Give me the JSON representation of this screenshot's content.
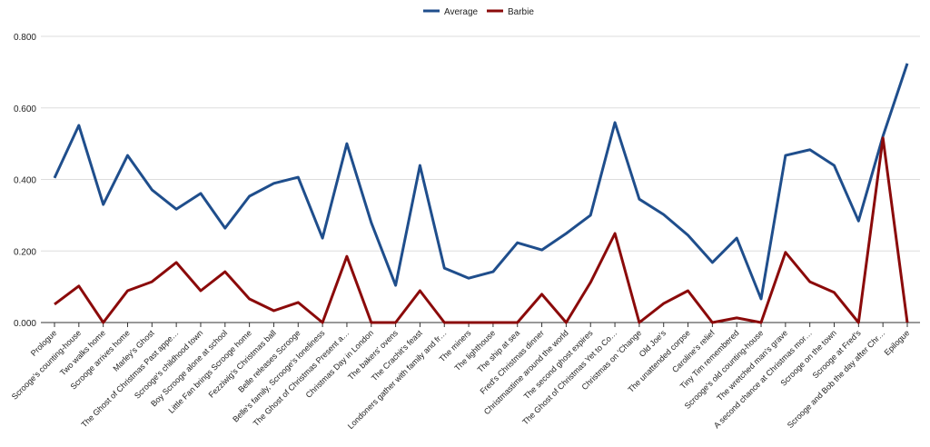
{
  "chart_data": {
    "type": "line",
    "title": "",
    "xlabel": "",
    "ylabel": "",
    "ylim": [
      0,
      0.8
    ],
    "yticks": [
      "0.000",
      "0.200",
      "0.400",
      "0.600",
      "0.800"
    ],
    "grid": true,
    "legend_position": "top-center",
    "categories": [
      "Prologue",
      "Scrooge's counting-house",
      "Two walks home",
      "Scrooge arrives home",
      "Marley's Ghost",
      "The Ghost of Christmas Past appe…",
      "Scrooge's childhood town",
      "Boy Scrooge alone at school",
      "Little Fan brings Scrooge home",
      "Fezziwig's Christmas ball",
      "Belle releases Scrooge",
      "Belle's family, Scrooge's loneliness",
      "The Ghost of Christmas Present a…",
      "Christmas Day in London",
      "The bakers' ovens",
      "The Crachit's feast",
      "Londoners gather with family and fr…",
      "The miners",
      "The lighthouse",
      "The ship at sea",
      "Fred's Christmas dinner",
      "Christmastime around the world",
      "The second ghost expires",
      "The Ghost of Christmas Yet to Co…",
      "Christmas on 'Change",
      "Old Joe's",
      "The unattended corpse",
      "Caroline's relief",
      "Tiny Tim remembered",
      "Scrooge's old counting-house",
      "The wretched man's grave",
      "A second chance at Christmas mor…",
      "Scrooge on the town",
      "Scrooge at Fred's",
      "Scrooge and Bob the day after Chr…",
      "Epilogue"
    ],
    "series": [
      {
        "name": "Average",
        "color": "#1f4e8c",
        "values": [
          0.404,
          0.551,
          0.33,
          0.467,
          0.371,
          0.317,
          0.361,
          0.264,
          0.353,
          0.389,
          0.406,
          0.236,
          0.5,
          0.279,
          0.104,
          0.439,
          0.152,
          0.124,
          0.142,
          0.223,
          0.203,
          0.249,
          0.3,
          0.559,
          0.345,
          0.302,
          0.244,
          0.168,
          0.236,
          0.066,
          0.467,
          0.483,
          0.439,
          0.284,
          0.521,
          0.724
        ]
      },
      {
        "name": "Barbie",
        "color": "#8b0a0a",
        "values": [
          0.051,
          0.102,
          0.0,
          0.089,
          0.114,
          0.168,
          0.089,
          0.142,
          0.066,
          0.033,
          0.056,
          0.0,
          0.185,
          0.0,
          0.0,
          0.089,
          0.0,
          0.0,
          0.0,
          0.0,
          0.079,
          0.0,
          0.112,
          0.249,
          0.0,
          0.053,
          0.089,
          0.0,
          0.013,
          0.0,
          0.196,
          0.114,
          0.084,
          0.0,
          0.516,
          0.0
        ]
      }
    ]
  }
}
